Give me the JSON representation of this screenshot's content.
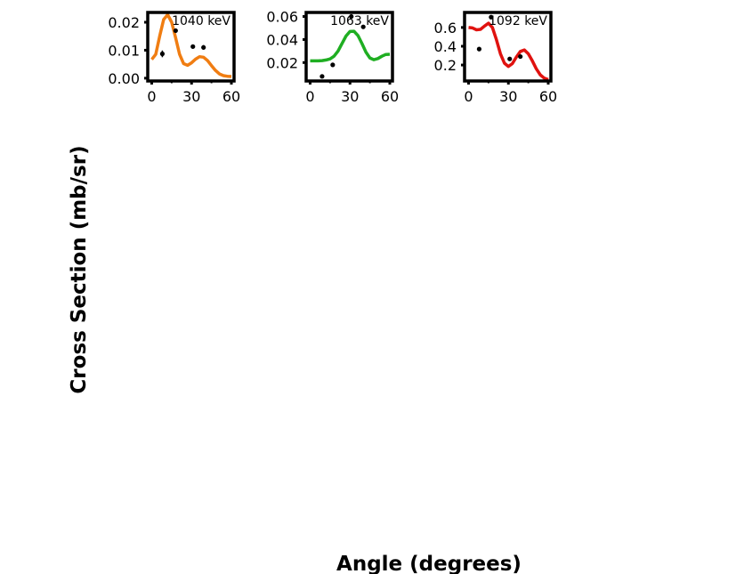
{
  "figure": {
    "xlabel": "Angle (degrees)",
    "ylabel": "Cross Section (mb/sr)"
  },
  "chart_data": [
    {
      "type": "line",
      "annotation": "1040 keV",
      "color": "#f07d12",
      "xlim": [
        -3,
        62
      ],
      "ylim": [
        -0.001,
        0.0235
      ],
      "xticks": [
        0,
        30,
        60
      ],
      "xtick_labels": [
        "0",
        "30",
        "60"
      ],
      "yticks": [
        0.0,
        0.01,
        0.02
      ],
      "ytick_labels": [
        "0.00",
        "0.01",
        "0.02"
      ],
      "curve": {
        "x": [
          0,
          3,
          6,
          9,
          12,
          15,
          18,
          21,
          24,
          27,
          30,
          33,
          36,
          39,
          42,
          45,
          48,
          51,
          54,
          57,
          60
        ],
        "y": [
          0.0067,
          0.0085,
          0.015,
          0.021,
          0.0227,
          0.02,
          0.0145,
          0.0085,
          0.0052,
          0.0046,
          0.0055,
          0.0068,
          0.0077,
          0.0075,
          0.0063,
          0.0045,
          0.0028,
          0.0015,
          0.0009,
          0.0007,
          0.0006
        ]
      },
      "points": {
        "x": [
          8,
          18,
          31,
          39
        ],
        "y": [
          0.0087,
          0.017,
          0.0113,
          0.011
        ],
        "yerr": [
          0.0012,
          0.0005,
          0.0005,
          0.0008
        ]
      }
    },
    {
      "type": "line",
      "annotation": "1063 keV",
      "color": "#1fae22",
      "xlim": [
        -3,
        62
      ],
      "ylim": [
        0.004,
        0.0635
      ],
      "xticks": [
        0,
        30,
        60
      ],
      "xtick_labels": [
        "0",
        "30",
        "60"
      ],
      "yticks": [
        0.02,
        0.04,
        0.06
      ],
      "ytick_labels": [
        "0.02",
        "0.04",
        "0.06"
      ],
      "curve": {
        "x": [
          0,
          3,
          6,
          9,
          12,
          15,
          18,
          21,
          24,
          27,
          30,
          33,
          36,
          39,
          42,
          45,
          48,
          51,
          54,
          57,
          60
        ],
        "y": [
          0.0215,
          0.0215,
          0.0215,
          0.0217,
          0.0222,
          0.0232,
          0.0255,
          0.03,
          0.0365,
          0.043,
          0.047,
          0.0472,
          0.0435,
          0.0365,
          0.029,
          0.024,
          0.0225,
          0.0235,
          0.0255,
          0.027,
          0.0272
        ]
      },
      "points": {
        "x": [
          9,
          17,
          31,
          40
        ],
        "y": [
          0.008,
          0.018,
          0.06,
          0.051
        ],
        "yerr": [
          0.0005,
          0.0005,
          0.0008,
          0.0008
        ]
      }
    },
    {
      "type": "line",
      "annotation": "1092 keV",
      "color": "#e0120f",
      "xlim": [
        -3,
        62
      ],
      "ylim": [
        0.03,
        0.76
      ],
      "xticks": [
        0,
        30,
        60
      ],
      "xtick_labels": [
        "0",
        "30",
        "60"
      ],
      "yticks": [
        0.2,
        0.4,
        0.6
      ],
      "ytick_labels": [
        "0.2",
        "0.4",
        "0.6"
      ],
      "curve": {
        "x": [
          0,
          3,
          6,
          9,
          12,
          15,
          18,
          21,
          24,
          27,
          30,
          33,
          36,
          39,
          42,
          45,
          48,
          51,
          54,
          57,
          60
        ],
        "y": [
          0.6,
          0.595,
          0.575,
          0.58,
          0.615,
          0.645,
          0.6,
          0.47,
          0.32,
          0.22,
          0.185,
          0.215,
          0.285,
          0.345,
          0.36,
          0.32,
          0.245,
          0.16,
          0.095,
          0.06,
          0.045
        ]
      },
      "points": {
        "x": [
          8,
          17,
          31,
          39
        ],
        "y": [
          0.37,
          0.71,
          0.265,
          0.29
        ],
        "yerr": [
          0.008,
          0.01,
          0.008,
          0.008
        ]
      }
    }
  ]
}
